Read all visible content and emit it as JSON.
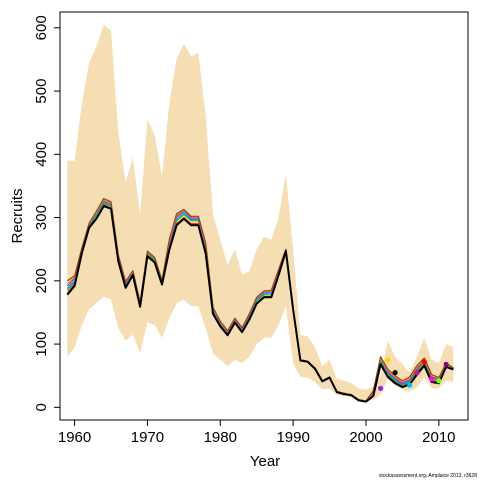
{
  "chart_data": {
    "type": "line",
    "title": "",
    "xlabel": "Year",
    "ylabel": "Recruits",
    "xlim": [
      1958,
      2014
    ],
    "ylim": [
      -20,
      625
    ],
    "xticks": [
      1960,
      1970,
      1980,
      1990,
      2000,
      2010
    ],
    "yticks": [
      0,
      100,
      200,
      300,
      400,
      500,
      600
    ],
    "grid": false,
    "legend": "none",
    "caption": "stockassessment.org, Amplaice 2013, r3628",
    "colors": {
      "band": "#f5deb3",
      "main_line": "#000000",
      "retro_lines": [
        "#ff0000",
        "#00cd00",
        "#1e90ff",
        "#a020f0",
        "#ffa500",
        "#8b4513"
      ]
    },
    "band": {
      "x": [
        1959,
        1960,
        1961,
        1962,
        1963,
        1964,
        1965,
        1966,
        1967,
        1968,
        1969,
        1970,
        1971,
        1972,
        1973,
        1974,
        1975,
        1976,
        1977,
        1978,
        1979,
        1980,
        1981,
        1982,
        1983,
        1984,
        1985,
        1986,
        1987,
        1988,
        1989,
        1990,
        1991,
        1992,
        1993,
        1994,
        1995,
        1996,
        1997,
        1998,
        1999,
        2000,
        2001,
        2002,
        2003,
        2004,
        2005,
        2006,
        2007,
        2008,
        2009,
        2010,
        2011,
        2012
      ],
      "upper": [
        390,
        390,
        480,
        545,
        570,
        605,
        595,
        435,
        355,
        395,
        305,
        455,
        430,
        365,
        480,
        550,
        575,
        555,
        560,
        460,
        305,
        265,
        225,
        250,
        210,
        215,
        250,
        270,
        265,
        300,
        370,
        250,
        115,
        112,
        95,
        65,
        75,
        45,
        42,
        38,
        30,
        28,
        32,
        50,
        105,
        80,
        68,
        55,
        80,
        110,
        75,
        70,
        100,
        95
      ],
      "lower": [
        80,
        95,
        130,
        155,
        165,
        175,
        170,
        125,
        105,
        115,
        85,
        135,
        130,
        110,
        140,
        165,
        170,
        160,
        160,
        125,
        85,
        75,
        65,
        75,
        70,
        80,
        100,
        110,
        110,
        130,
        160,
        70,
        48,
        47,
        40,
        28,
        30,
        20,
        18,
        16,
        12,
        10,
        12,
        20,
        45,
        35,
        28,
        25,
        32,
        48,
        30,
        30,
        42,
        40
      ]
    },
    "series": [
      {
        "values": [
          180,
          195,
          245,
          285,
          300,
          320,
          315,
          232,
          190,
          210,
          160,
          240,
          230,
          195,
          250,
          290,
          300,
          290,
          290,
          245,
          150,
          130,
          115,
          135,
          120,
          140,
          165,
          175,
          175,
          210,
          248,
          155,
          75,
          73,
          62,
          42,
          48,
          25,
          22,
          20,
          12,
          10,
          20,
          70,
          50,
          40,
          33,
          38,
          55,
          68,
          42,
          40,
          65,
          60
        ]
      },
      {
        "values": [
          185,
          198,
          248,
          287,
          303,
          322,
          318,
          234,
          192,
          212,
          162,
          242,
          232,
          197,
          253,
          295,
          305,
          295,
          295,
          250,
          152,
          132,
          117,
          137,
          122,
          143,
          168,
          178,
          178,
          212,
          248,
          155,
          75,
          73,
          62,
          42,
          48,
          25,
          22,
          20,
          12,
          10,
          20,
          72,
          52,
          42,
          35,
          40,
          58,
          72,
          45,
          42,
          68,
          62
        ]
      },
      {
        "values": [
          188,
          200,
          249,
          288,
          305,
          324,
          320,
          236,
          194,
          213,
          163,
          244,
          234,
          198,
          256,
          298,
          308,
          297,
          297,
          253,
          154,
          133,
          118,
          138,
          123,
          145,
          170,
          180,
          181,
          214,
          249,
          155,
          75,
          73,
          62,
          42,
          48,
          25,
          22,
          20,
          12,
          10,
          20,
          75,
          54,
          44,
          36,
          42,
          60,
          74,
          47,
          44,
          70,
          62
        ]
      },
      {
        "values": [
          192,
          204,
          250,
          289,
          307,
          326,
          322,
          238,
          196,
          214,
          164,
          245,
          235,
          199,
          259,
          301,
          311,
          299,
          299,
          256,
          156,
          134,
          119,
          139,
          124,
          146,
          172,
          182,
          183,
          216,
          249,
          155,
          75,
          73,
          62,
          42,
          48,
          25,
          22,
          20,
          12,
          10,
          22,
          78,
          56,
          46,
          38,
          44,
          62,
          75,
          48,
          45,
          70,
          62
        ]
      },
      {
        "values": [
          196,
          206,
          251,
          290,
          308,
          328,
          323,
          240,
          198,
          215,
          165,
          246,
          236,
          200,
          262,
          304,
          312,
          301,
          301,
          258,
          157,
          135,
          120,
          140,
          125,
          147,
          173,
          183,
          184,
          217,
          250,
          155,
          75,
          73,
          62,
          42,
          48,
          25,
          22,
          20,
          12,
          10,
          24,
          78,
          58,
          48,
          40,
          46,
          64,
          76,
          50,
          46,
          70,
          62
        ]
      },
      {
        "values": [
          200,
          208,
          252,
          291,
          310,
          330,
          325,
          241,
          199,
          216,
          166,
          247,
          237,
          201,
          265,
          306,
          313,
          302,
          302,
          260,
          158,
          136,
          121,
          141,
          126,
          148,
          174,
          184,
          185,
          218,
          250,
          155,
          75,
          73,
          62,
          42,
          48,
          25,
          22,
          20,
          12,
          10,
          26,
          80,
          60,
          50,
          42,
          48,
          66,
          78,
          52,
          47,
          70,
          62
        ]
      },
      {
        "values": [
          178,
          192,
          244,
          284,
          298,
          318,
          314,
          231,
          189,
          209,
          159,
          239,
          229,
          194,
          249,
          288,
          298,
          288,
          288,
          243,
          148,
          128,
          114,
          134,
          119,
          139,
          164,
          174,
          174,
          209,
          247,
          155,
          74,
          72,
          61,
          41,
          47,
          24,
          21,
          19,
          11,
          9,
          18,
          68,
          48,
          38,
          32,
          36,
          52,
          66,
          40,
          38,
          64,
          60
        ]
      }
    ],
    "points": [
      {
        "x": 2002,
        "y": 30,
        "color": "#a020f0"
      },
      {
        "x": 2003,
        "y": 75,
        "color": "#ffd700"
      },
      {
        "x": 2004,
        "y": 55,
        "color": "#000000"
      },
      {
        "x": 2006,
        "y": 35,
        "color": "#00bfff"
      },
      {
        "x": 2007,
        "y": 55,
        "color": "#c71585"
      },
      {
        "x": 2008,
        "y": 72,
        "color": "#ff0000"
      },
      {
        "x": 2009,
        "y": 45,
        "color": "#ff00ff"
      },
      {
        "x": 2010,
        "y": 42,
        "color": "#7cfc00"
      },
      {
        "x": 2011,
        "y": 68,
        "color": "#8b008b"
      }
    ]
  }
}
